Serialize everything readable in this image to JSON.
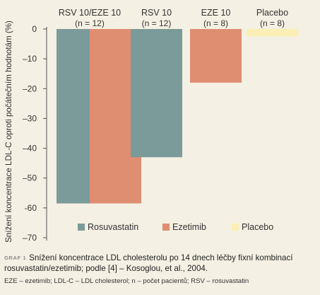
{
  "chart_data": {
    "type": "bar",
    "ylabel": "Snížení koncentrace LDL-C oproti počátečním hodnotám (%)",
    "ylim": [
      -70,
      0
    ],
    "yticks": [
      0,
      -10,
      -20,
      -30,
      -40,
      -50,
      -60,
      -70
    ],
    "ytick_labels": [
      "0",
      "–10",
      "–20",
      "–30",
      "–40",
      "–50",
      "-60",
      "–70"
    ],
    "groups": [
      {
        "label_line1": "RSV 10/EZE 10",
        "label_line2": "(n = 12)",
        "bars": [
          {
            "series": "Rosuvastatin",
            "value": -58.5
          },
          {
            "series": "Ezetimib",
            "value": -58.5
          }
        ]
      },
      {
        "label_line1": "RSV 10",
        "label_line2": "(n = 12)",
        "bars": [
          {
            "series": "Rosuvastatin",
            "value": -43
          }
        ]
      },
      {
        "label_line1": "EZE 10",
        "label_line2": "(n = 8)",
        "bars": [
          {
            "series": "Ezetimib",
            "value": -18
          }
        ]
      },
      {
        "label_line1": "Placebo",
        "label_line2": "(n = 8)",
        "bars": [
          {
            "series": "Placebo",
            "value": -2.5
          }
        ]
      }
    ],
    "series": [
      {
        "name": "Rosuvastatin",
        "color": "#7b9b9a"
      },
      {
        "name": "Ezetimib",
        "color": "#df8e72"
      },
      {
        "name": "Placebo",
        "color": "#fbefb6"
      }
    ],
    "legend": "bottom"
  },
  "caption": {
    "label": "GRAF 1",
    "text": "Snížení koncentrace LDL cholesterolu po 14 dnech léčby fixní kombinací rosuvastatin/ezetimib; podle [4] – Kosoglou, et al., 2004."
  },
  "footnote": "EZE – ezetimib; LDL-C – LDL cholesterol; n – počet pacientů; RSV – rosuvastatin"
}
